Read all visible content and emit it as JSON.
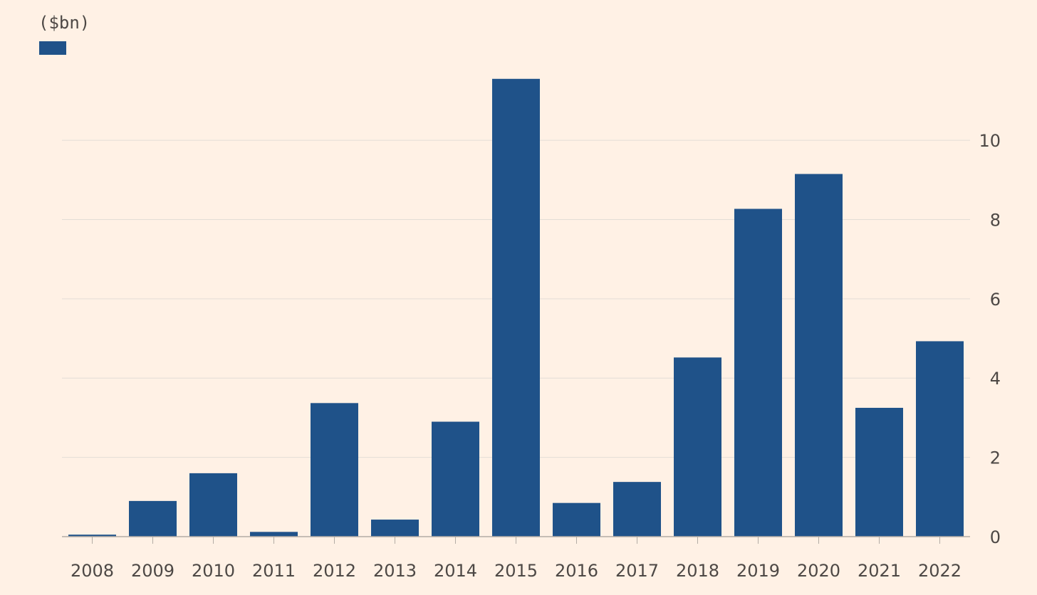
{
  "chart_data": {
    "type": "bar",
    "unit_label": "($bn)",
    "legend": [
      {
        "name": "",
        "color": "#1f5289"
      }
    ],
    "categories": [
      "2008",
      "2009",
      "2010",
      "2011",
      "2012",
      "2013",
      "2014",
      "2015",
      "2016",
      "2017",
      "2018",
      "2019",
      "2020",
      "2021",
      "2022"
    ],
    "series": [
      {
        "values": [
          0.05,
          0.9,
          1.6,
          0.12,
          3.37,
          0.43,
          2.9,
          11.55,
          0.85,
          1.38,
          4.52,
          8.27,
          9.15,
          3.25,
          4.93
        ],
        "color": "#1f5289"
      }
    ],
    "ylim": [
      0,
      11.6
    ],
    "y_ticks": [
      0,
      2,
      4,
      6,
      8,
      10
    ],
    "y_axis_side": "right",
    "grid": true,
    "legend_position": "top-left",
    "colors": {
      "background": "#fff1e5",
      "bar": "#1f5289",
      "grid": "#e3ddd6",
      "axis": "#b3aca5",
      "text": "#4d4845"
    }
  }
}
